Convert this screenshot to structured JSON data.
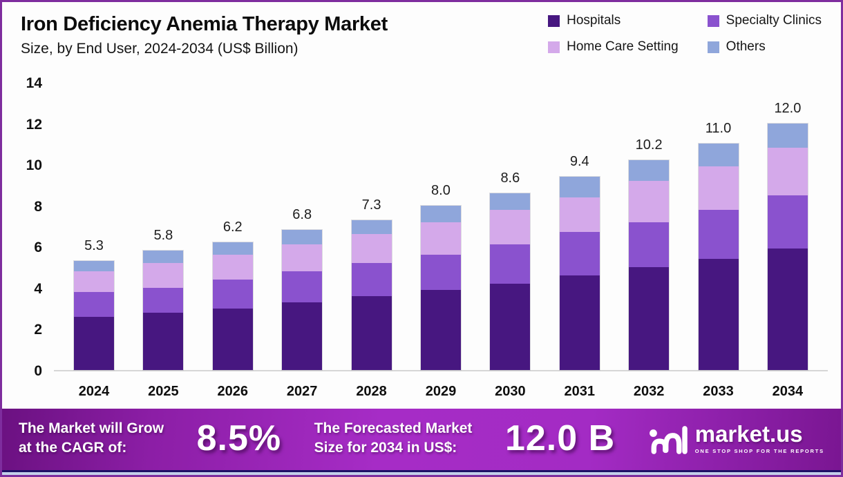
{
  "header": {
    "title": "Iron Deficiency Anemia Therapy Market",
    "subtitle": "Size, by End User, 2024-2034 (US$ Billion)"
  },
  "chart_data": {
    "type": "bar",
    "stacked": true,
    "title": "Iron Deficiency Anemia Therapy Market",
    "subtitle": "Size, by End User, 2024-2034 (US$ Billion)",
    "categories": [
      "2024",
      "2025",
      "2026",
      "2027",
      "2028",
      "2029",
      "2030",
      "2031",
      "2032",
      "2033",
      "2034"
    ],
    "series": [
      {
        "name": "Hospitals",
        "color": "#471780",
        "values": [
          2.6,
          2.8,
          3.0,
          3.3,
          3.6,
          3.9,
          4.2,
          4.6,
          5.0,
          5.4,
          5.9
        ]
      },
      {
        "name": "Specialty Clinics",
        "color": "#8a52ce",
        "values": [
          1.2,
          1.2,
          1.4,
          1.5,
          1.6,
          1.7,
          1.9,
          2.1,
          2.2,
          2.4,
          2.6
        ]
      },
      {
        "name": "Home Care Setting",
        "color": "#d4a9ea",
        "values": [
          1.0,
          1.2,
          1.2,
          1.3,
          1.4,
          1.6,
          1.7,
          1.7,
          2.0,
          2.1,
          2.3
        ]
      },
      {
        "name": "Others",
        "color": "#8fa6db",
        "values": [
          0.5,
          0.6,
          0.6,
          0.7,
          0.7,
          0.8,
          0.8,
          1.0,
          1.0,
          1.1,
          1.2
        ]
      }
    ],
    "totals": [
      5.3,
      5.8,
      6.2,
      6.8,
      7.3,
      8.0,
      8.6,
      9.4,
      10.2,
      11.0,
      12.0
    ],
    "xlabel": "",
    "ylabel": "US$ Billion",
    "ylim": [
      0,
      14
    ],
    "ytick_step": 2,
    "grid": false,
    "legend_position": "top-right"
  },
  "banner": {
    "cagr_label_line1": "The Market will Grow",
    "cagr_label_line2": "at the CAGR of:",
    "cagr_value": "8.5%",
    "forecast_label_line1": "The Forecasted Market",
    "forecast_label_line2": "Size for 2034 in US$:",
    "forecast_value": "12.0 B",
    "brand": {
      "name": "market.us",
      "tagline": "ONE STOP SHOP FOR THE REPORTS"
    }
  },
  "colors": {
    "page_border": "#7e2d9e",
    "banner_gradient_start": "#6b1181",
    "banner_gradient_mid": "#a62cc6",
    "banner_gradient_end": "#7a1692",
    "bottom_strip_navy": "#1d1166",
    "bottom_strip_light": "#c3d0ea",
    "baseline": "#d6d6d6"
  }
}
